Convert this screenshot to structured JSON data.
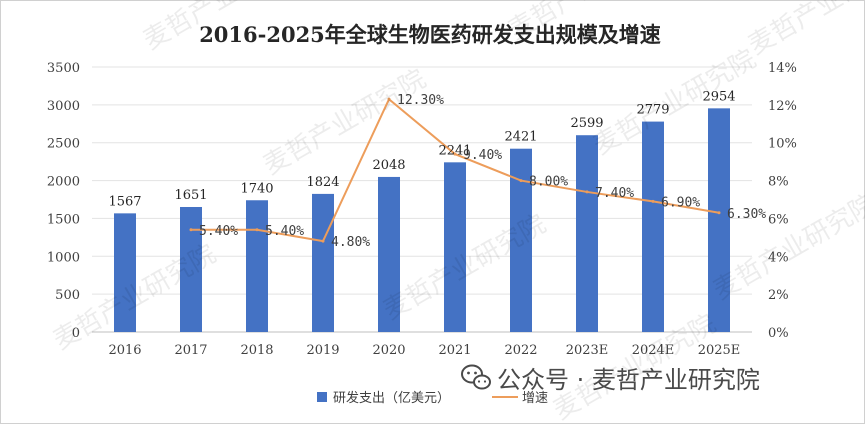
{
  "chart_data": {
    "type": "bar",
    "title": "2016-2025年全球生物医药研发支出规模及增速",
    "categories": [
      "2016",
      "2017",
      "2018",
      "2019",
      "2020",
      "2021",
      "2022",
      "2023E",
      "2024E",
      "2025E"
    ],
    "series": [
      {
        "name": "研发支出（亿美元）",
        "type": "bar",
        "values": [
          1567,
          1651,
          1740,
          1824,
          2048,
          2241,
          2421,
          2599,
          2779,
          2954
        ],
        "color": "#4472c4"
      },
      {
        "name": "增速",
        "type": "line",
        "axis": "right",
        "values": [
          null,
          5.4,
          5.4,
          4.8,
          12.3,
          9.4,
          8.0,
          7.4,
          6.9,
          6.3
        ],
        "labels": [
          "",
          "5.40%",
          "5.40%",
          "4.80%",
          "12.30%",
          "9.40%",
          "8.00%",
          "7.40%",
          "6.90%",
          "6.30%"
        ],
        "color": "#ed9d5b"
      }
    ],
    "y_left": {
      "ylim": [
        0,
        3500
      ],
      "ticks": [
        "0",
        "500",
        "1000",
        "1500",
        "2000",
        "2500",
        "3000",
        "3500"
      ]
    },
    "y_right": {
      "ylim": [
        0,
        14
      ],
      "ticks": [
        "0%",
        "2%",
        "4%",
        "6%",
        "8%",
        "10%",
        "12%",
        "14%"
      ]
    },
    "grid": true,
    "legend": "bottom"
  },
  "watermark": "麦哲产业研究院",
  "brand": {
    "icon": "wechat-icon",
    "text": "公众号 · 麦哲产业研究院"
  }
}
